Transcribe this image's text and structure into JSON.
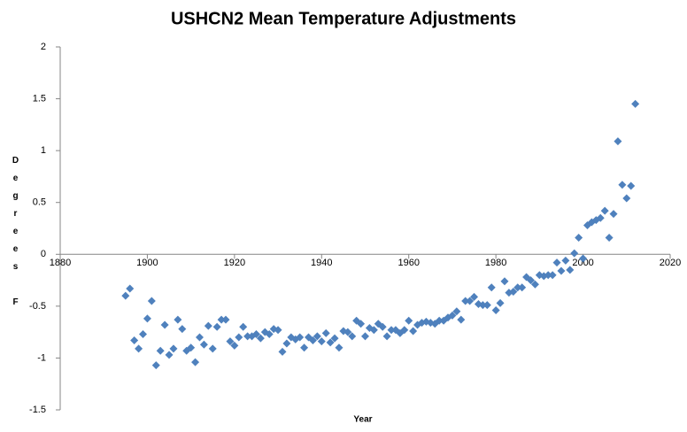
{
  "chart_data": {
    "type": "scatter",
    "title": "USHCN2 Mean Temperature Adjustments",
    "xlabel": "Year",
    "ylabel": "Degrees F",
    "x": [
      1895,
      1896,
      1897,
      1898,
      1899,
      1900,
      1901,
      1902,
      1903,
      1904,
      1905,
      1906,
      1907,
      1908,
      1909,
      1910,
      1911,
      1912,
      1913,
      1914,
      1915,
      1916,
      1917,
      1918,
      1919,
      1920,
      1921,
      1922,
      1923,
      1924,
      1925,
      1926,
      1927,
      1928,
      1929,
      1930,
      1931,
      1932,
      1933,
      1934,
      1935,
      1936,
      1937,
      1938,
      1939,
      1940,
      1941,
      1942,
      1943,
      1944,
      1945,
      1946,
      1947,
      1948,
      1949,
      1950,
      1951,
      1952,
      1953,
      1954,
      1955,
      1956,
      1957,
      1958,
      1959,
      1960,
      1961,
      1962,
      1963,
      1964,
      1965,
      1966,
      1967,
      1968,
      1969,
      1970,
      1971,
      1972,
      1973,
      1974,
      1975,
      1976,
      1977,
      1978,
      1979,
      1980,
      1981,
      1982,
      1983,
      1984,
      1985,
      1986,
      1987,
      1988,
      1989,
      1990,
      1991,
      1992,
      1993,
      1994,
      1995,
      1996,
      1997,
      1998,
      1999,
      2000,
      2001,
      2002,
      2003,
      2004,
      2005,
      2006,
      2007,
      2008,
      2009,
      2010,
      2011,
      2012
    ],
    "values": [
      -0.4,
      -0.33,
      -0.83,
      -0.91,
      -0.77,
      -0.62,
      -0.45,
      -1.07,
      -0.93,
      -0.68,
      -0.97,
      -0.91,
      -0.63,
      -0.72,
      -0.93,
      -0.9,
      -1.04,
      -0.8,
      -0.87,
      -0.69,
      -0.91,
      -0.7,
      -0.63,
      -0.63,
      -0.84,
      -0.88,
      -0.8,
      -0.7,
      -0.79,
      -0.79,
      -0.77,
      -0.81,
      -0.75,
      -0.77,
      -0.72,
      -0.73,
      -0.94,
      -0.86,
      -0.8,
      -0.82,
      -0.8,
      -0.9,
      -0.8,
      -0.83,
      -0.79,
      -0.84,
      -0.76,
      -0.85,
      -0.81,
      -0.9,
      -0.74,
      -0.75,
      -0.79,
      -0.64,
      -0.67,
      -0.79,
      -0.71,
      -0.73,
      -0.67,
      -0.7,
      -0.79,
      -0.73,
      -0.73,
      -0.76,
      -0.73,
      -0.64,
      -0.74,
      -0.68,
      -0.66,
      -0.65,
      -0.66,
      -0.67,
      -0.64,
      -0.64,
      -0.61,
      -0.59,
      -0.55,
      -0.63,
      -0.45,
      -0.45,
      -0.41,
      -0.48,
      -0.49,
      -0.49,
      -0.32,
      -0.54,
      -0.47,
      -0.26,
      -0.37,
      -0.36,
      -0.32,
      -0.32,
      -0.22,
      -0.25,
      -0.29,
      -0.2,
      -0.21,
      -0.2,
      -0.2,
      -0.08,
      -0.16,
      -0.06,
      -0.15,
      0.01,
      0.16,
      -0.04,
      0.28,
      0.31,
      0.33,
      0.35,
      0.42,
      0.16,
      0.39,
      1.09,
      0.67,
      0.54,
      0.66,
      1.45
    ],
    "color": "#4f81bd",
    "xlim": [
      1880,
      2020
    ],
    "xticks": [
      1880,
      1900,
      1920,
      1940,
      1960,
      1980,
      2000,
      2020
    ],
    "ylim": [
      -1.5,
      2
    ],
    "yticks": [
      -1.5,
      -1,
      -0.5,
      0,
      0.5,
      1,
      1.5,
      2
    ],
    "grid": false
  }
}
